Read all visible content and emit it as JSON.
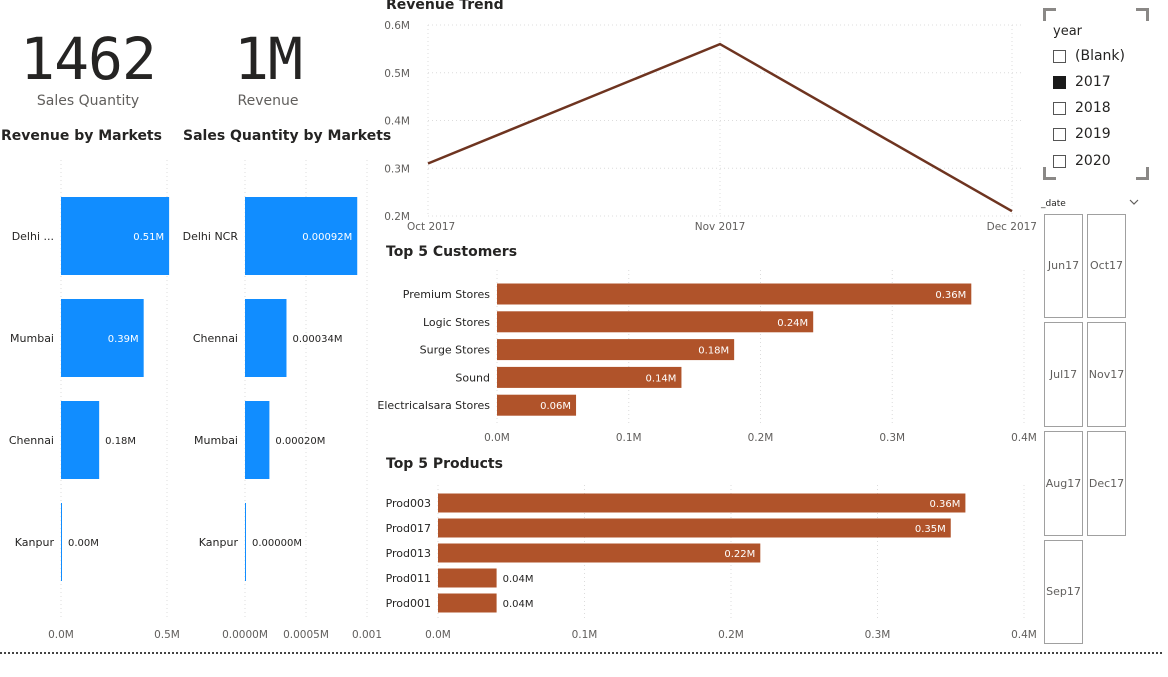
{
  "kpis": {
    "sales_quantity": {
      "value": "1462",
      "label": "Sales Quantity"
    },
    "revenue": {
      "value": "1M",
      "label": "Revenue"
    }
  },
  "titles": {
    "revenue_by_markets": "Revenue by Markets",
    "sales_qty_by_markets": "Sales Quantity by Markets",
    "revenue_trend": "Revenue Trend",
    "top_customers": "Top 5 Customers",
    "top_products": "Top 5 Products"
  },
  "chart_data": [
    {
      "id": "revenue_by_markets",
      "type": "bar",
      "orientation": "horizontal",
      "categories": [
        "Delhi ...",
        "Mumbai",
        "Chennai",
        "Kanpur"
      ],
      "values": [
        0.51,
        0.39,
        0.18,
        0.0
      ],
      "value_labels": [
        "0.51M",
        "0.39M",
        "0.18M",
        "0.00M"
      ],
      "xlim": [
        0,
        0.5
      ],
      "xticks": [
        "0.0M",
        "0.5M"
      ],
      "color": "#118DFF"
    },
    {
      "id": "sales_qty_by_markets",
      "type": "bar",
      "orientation": "horizontal",
      "categories": [
        "Delhi NCR",
        "Chennai",
        "Mumbai",
        "Kanpur"
      ],
      "values": [
        0.00092,
        0.00034,
        0.0002,
        0.0
      ],
      "value_labels": [
        "0.00092M",
        "0.00034M",
        "0.00020M",
        "0.00000M"
      ],
      "xlim": [
        0,
        0.001
      ],
      "xticks": [
        "0.0000M",
        "0.0005M",
        "0.001"
      ],
      "color": "#118DFF"
    },
    {
      "id": "revenue_trend",
      "type": "line",
      "x": [
        "Oct 2017",
        "Nov 2017",
        "Dec 2017"
      ],
      "values": [
        0.31,
        0.56,
        0.21
      ],
      "ylim": [
        0.2,
        0.6
      ],
      "yticks": [
        "0.2M",
        "0.3M",
        "0.4M",
        "0.5M",
        "0.6M"
      ],
      "color": "#6E3420"
    },
    {
      "id": "top_customers",
      "type": "bar",
      "orientation": "horizontal",
      "categories": [
        "Premium Stores",
        "Logic Stores",
        "Surge Stores",
        "Sound",
        "Electricalsara Stores"
      ],
      "values": [
        0.36,
        0.24,
        0.18,
        0.14,
        0.06
      ],
      "value_labels": [
        "0.36M",
        "0.24M",
        "0.18M",
        "0.14M",
        "0.06M"
      ],
      "xlim": [
        0,
        0.4
      ],
      "xticks": [
        "0.0M",
        "0.1M",
        "0.2M",
        "0.3M",
        "0.4M"
      ],
      "color": "#B0532A"
    },
    {
      "id": "top_products",
      "type": "bar",
      "orientation": "horizontal",
      "categories": [
        "Prod003",
        "Prod017",
        "Prod013",
        "Prod011",
        "Prod001"
      ],
      "values": [
        0.36,
        0.35,
        0.22,
        0.04,
        0.04
      ],
      "value_labels": [
        "0.36M",
        "0.35M",
        "0.22M",
        "0.04M",
        "0.04M"
      ],
      "xlim": [
        0,
        0.4
      ],
      "xticks": [
        "0.0M",
        "0.1M",
        "0.2M",
        "0.3M",
        "0.4M"
      ],
      "color": "#B0532A"
    }
  ],
  "year_slicer": {
    "title": "year",
    "items": [
      {
        "label": "(Blank)",
        "checked": false
      },
      {
        "label": "2017",
        "checked": true
      },
      {
        "label": "2018",
        "checked": false
      },
      {
        "label": "2019",
        "checked": false
      },
      {
        "label": "2020",
        "checked": false
      }
    ]
  },
  "date_slicer": {
    "title": "_date",
    "tiles": [
      {
        "month": "Jun",
        "year": "17"
      },
      {
        "month": "Oct",
        "year": "17"
      },
      {
        "month": "Jul",
        "year": "17"
      },
      {
        "month": "Nov",
        "year": "17"
      },
      {
        "month": "Aug",
        "year": "17"
      },
      {
        "month": "Dec",
        "year": "17"
      },
      {
        "month": "Sep",
        "year": "17"
      }
    ]
  }
}
